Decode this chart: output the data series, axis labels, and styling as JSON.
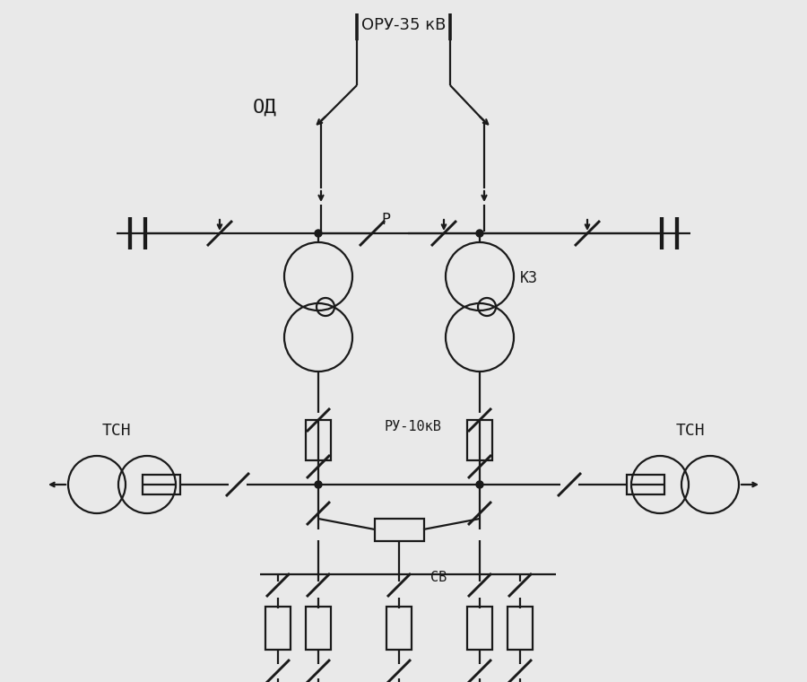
{
  "bg_color": "#e9e9e9",
  "line_color": "#1a1a1a",
  "line_width": 1.6,
  "title_text": "ОРУ-35 кВ",
  "label_OD": "ОД",
  "label_KZ": "КЗ",
  "label_R": "Р",
  "label_RU10": "РУ-10кВ",
  "label_SV": "СВ",
  "label_TSN_left": "ТСН",
  "label_TSN_right": "ТСН"
}
